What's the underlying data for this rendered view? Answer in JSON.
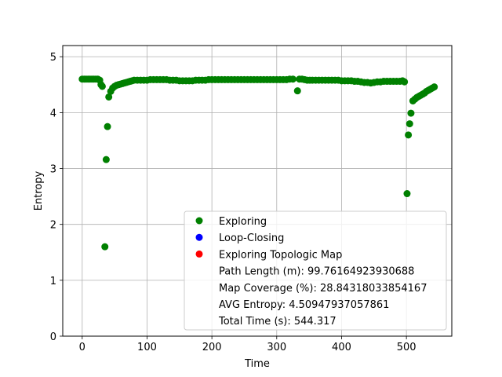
{
  "chart_data": {
    "type": "scatter",
    "title": "",
    "xlabel": "Time",
    "ylabel": "Entropy",
    "xlim": [
      -30,
      570
    ],
    "ylim": [
      0,
      5.2
    ],
    "x_ticks": [
      0,
      100,
      200,
      300,
      400,
      500
    ],
    "y_ticks": [
      0,
      1,
      2,
      3,
      4,
      5
    ],
    "grid": true,
    "legend_position": "lower right",
    "colors": {
      "exploring": "#008000",
      "loop_closing": "#0000ff",
      "topologic": "#ff0000"
    },
    "series": [
      {
        "name": "Exploring",
        "color": "#008000",
        "points": [
          [
            0,
            4.6
          ],
          [
            3,
            4.6
          ],
          [
            6,
            4.6
          ],
          [
            9,
            4.6
          ],
          [
            12,
            4.6
          ],
          [
            15,
            4.6
          ],
          [
            18,
            4.6
          ],
          [
            21,
            4.6
          ],
          [
            24,
            4.6
          ],
          [
            27,
            4.58
          ],
          [
            29,
            4.5
          ],
          [
            31,
            4.47
          ],
          [
            35,
            1.6
          ],
          [
            37,
            3.16
          ],
          [
            39,
            3.75
          ],
          [
            41,
            4.28
          ],
          [
            44,
            4.38
          ],
          [
            47,
            4.44
          ],
          [
            50,
            4.47
          ],
          [
            53,
            4.49
          ],
          [
            56,
            4.5
          ],
          [
            59,
            4.51
          ],
          [
            62,
            4.52
          ],
          [
            65,
            4.53
          ],
          [
            68,
            4.54
          ],
          [
            71,
            4.55
          ],
          [
            74,
            4.56
          ],
          [
            77,
            4.57
          ],
          [
            80,
            4.58
          ],
          [
            85,
            4.58
          ],
          [
            90,
            4.58
          ],
          [
            95,
            4.58
          ],
          [
            100,
            4.58
          ],
          [
            105,
            4.59
          ],
          [
            110,
            4.59
          ],
          [
            115,
            4.59
          ],
          [
            120,
            4.59
          ],
          [
            125,
            4.59
          ],
          [
            130,
            4.59
          ],
          [
            135,
            4.58
          ],
          [
            140,
            4.58
          ],
          [
            145,
            4.58
          ],
          [
            150,
            4.57
          ],
          [
            155,
            4.57
          ],
          [
            160,
            4.57
          ],
          [
            165,
            4.57
          ],
          [
            170,
            4.57
          ],
          [
            175,
            4.58
          ],
          [
            180,
            4.58
          ],
          [
            185,
            4.58
          ],
          [
            190,
            4.58
          ],
          [
            195,
            4.59
          ],
          [
            200,
            4.59
          ],
          [
            205,
            4.59
          ],
          [
            210,
            4.59
          ],
          [
            215,
            4.59
          ],
          [
            220,
            4.59
          ],
          [
            225,
            4.59
          ],
          [
            230,
            4.59
          ],
          [
            235,
            4.59
          ],
          [
            240,
            4.59
          ],
          [
            245,
            4.59
          ],
          [
            250,
            4.59
          ],
          [
            255,
            4.59
          ],
          [
            260,
            4.59
          ],
          [
            265,
            4.59
          ],
          [
            270,
            4.59
          ],
          [
            275,
            4.59
          ],
          [
            280,
            4.59
          ],
          [
            285,
            4.59
          ],
          [
            290,
            4.59
          ],
          [
            295,
            4.59
          ],
          [
            300,
            4.59
          ],
          [
            305,
            4.59
          ],
          [
            310,
            4.59
          ],
          [
            315,
            4.59
          ],
          [
            320,
            4.6
          ],
          [
            325,
            4.6
          ],
          [
            332,
            4.39
          ],
          [
            335,
            4.6
          ],
          [
            339,
            4.6
          ],
          [
            343,
            4.59
          ],
          [
            347,
            4.58
          ],
          [
            351,
            4.58
          ],
          [
            355,
            4.58
          ],
          [
            360,
            4.58
          ],
          [
            365,
            4.58
          ],
          [
            370,
            4.58
          ],
          [
            375,
            4.58
          ],
          [
            380,
            4.58
          ],
          [
            385,
            4.58
          ],
          [
            390,
            4.58
          ],
          [
            395,
            4.58
          ],
          [
            400,
            4.57
          ],
          [
            405,
            4.57
          ],
          [
            410,
            4.57
          ],
          [
            415,
            4.57
          ],
          [
            420,
            4.56
          ],
          [
            425,
            4.56
          ],
          [
            430,
            4.55
          ],
          [
            435,
            4.54
          ],
          [
            440,
            4.54
          ],
          [
            445,
            4.53
          ],
          [
            450,
            4.54
          ],
          [
            455,
            4.55
          ],
          [
            460,
            4.55
          ],
          [
            465,
            4.56
          ],
          [
            470,
            4.56
          ],
          [
            475,
            4.56
          ],
          [
            480,
            4.56
          ],
          [
            485,
            4.56
          ],
          [
            490,
            4.56
          ],
          [
            494,
            4.57
          ],
          [
            497,
            4.55
          ],
          [
            501,
            2.55
          ],
          [
            503,
            3.6
          ],
          [
            505,
            3.8
          ],
          [
            507,
            3.99
          ],
          [
            510,
            4.21
          ],
          [
            513,
            4.24
          ],
          [
            516,
            4.27
          ],
          [
            519,
            4.29
          ],
          [
            522,
            4.31
          ],
          [
            525,
            4.33
          ],
          [
            528,
            4.35
          ],
          [
            531,
            4.38
          ],
          [
            534,
            4.4
          ],
          [
            537,
            4.42
          ],
          [
            540,
            4.44
          ],
          [
            543,
            4.46
          ]
        ]
      },
      {
        "name": "Loop-Closing",
        "color": "#0000ff",
        "points": []
      },
      {
        "name": "Exploring Topologic Map",
        "color": "#ff0000",
        "points": []
      }
    ],
    "legend_entries": [
      {
        "label": "Exploring",
        "color": "#008000",
        "marker": true
      },
      {
        "label": "Loop-Closing",
        "color": "#0000ff",
        "marker": true
      },
      {
        "label": "Exploring Topologic Map",
        "color": "#ff0000",
        "marker": true
      },
      {
        "label": "Path Length (m): 99.76164923930688",
        "marker": false
      },
      {
        "label": "Map Coverage (%): 28.84318033854167",
        "marker": false
      },
      {
        "label": "AVG Entropy: 4.50947937057861",
        "marker": false
      },
      {
        "label": "Total Time (s): 544.317",
        "marker": false
      }
    ]
  }
}
